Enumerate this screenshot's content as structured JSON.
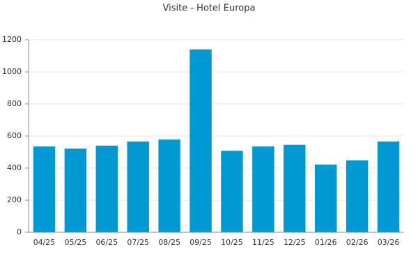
{
  "chart_data": {
    "type": "bar",
    "title": "Visite - Hotel Europa",
    "categories": [
      "04/25",
      "05/25",
      "06/25",
      "07/25",
      "08/25",
      "09/25",
      "10/25",
      "11/25",
      "12/25",
      "01/26",
      "02/26",
      "03/26"
    ],
    "values": [
      535,
      522,
      540,
      566,
      578,
      1140,
      508,
      535,
      545,
      422,
      448,
      566
    ],
    "color": "#0099d4",
    "ylim": [
      0,
      1200
    ],
    "yticks": [
      0,
      200,
      400,
      600,
      800,
      1000,
      1200
    ],
    "grid": true
  }
}
